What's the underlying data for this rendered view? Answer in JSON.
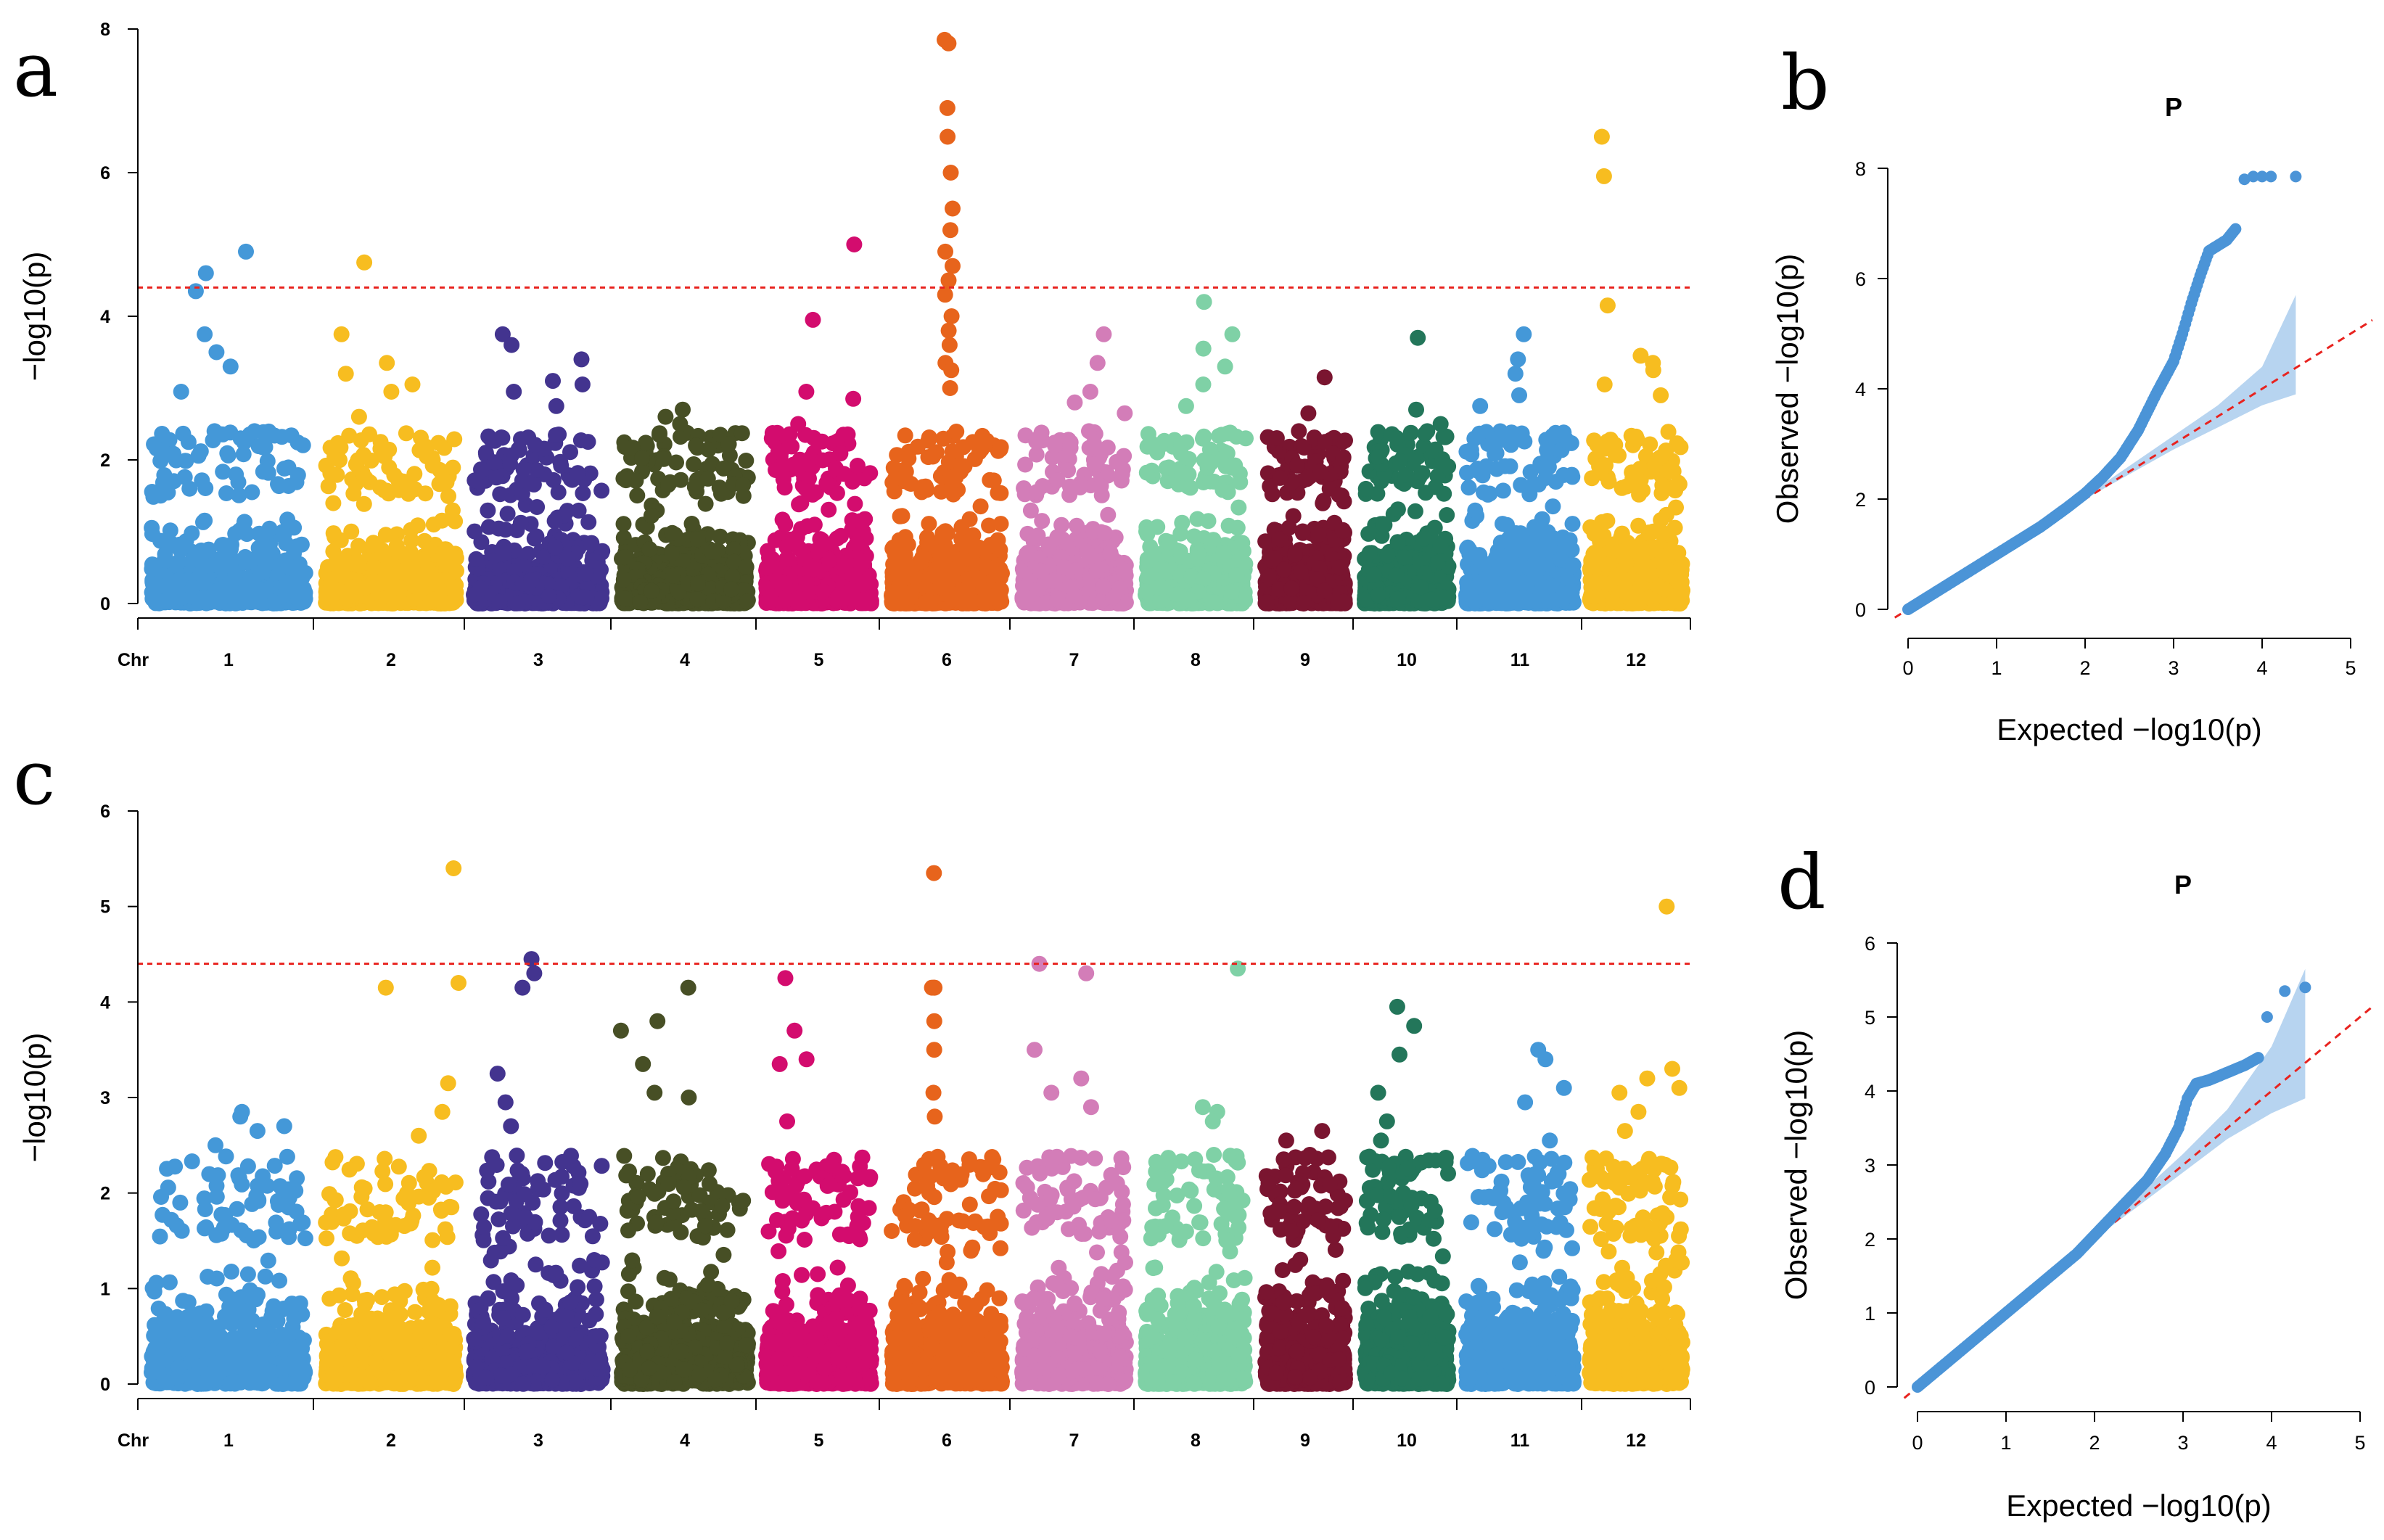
{
  "chart_data": [
    {
      "panel": "a",
      "type": "scatter",
      "xlabel": "Chr",
      "ylabel": "−log10(p)",
      "categories": [
        "1",
        "2",
        "3",
        "4",
        "5",
        "6",
        "7",
        "8",
        "9",
        "10",
        "11",
        "12"
      ],
      "yticks": [
        "0",
        "2",
        "4",
        "6",
        "8"
      ],
      "ylim": [
        0,
        8
      ],
      "threshold": 4.4,
      "colors": [
        "#4498d8",
        "#f7bd20",
        "#43348f",
        "#474f25",
        "#d30c6e",
        "#e7641c",
        "#d37db8",
        "#7fd1a6",
        "#7a1530",
        "#23765a",
        "#4498d8",
        "#f7bd20"
      ],
      "threshold_color": "#e8231f",
      "grid": false,
      "legend": "none",
      "peaks": [
        {
          "chr": 1,
          "values": [
            4.9,
            4.6,
            4.35,
            3.75,
            3.5,
            3.3,
            2.95,
            2.4,
            2.3,
            2.25
          ]
        },
        {
          "chr": 2,
          "values": [
            4.75,
            3.75,
            3.35,
            3.2,
            3.05,
            2.95,
            2.6
          ]
        },
        {
          "chr": 3,
          "values": [
            3.75,
            3.6,
            3.4,
            3.1,
            3.05,
            2.95,
            2.75
          ]
        },
        {
          "chr": 4,
          "values": [
            2.7,
            2.6,
            2.5,
            2.35,
            2.2
          ]
        },
        {
          "chr": 5,
          "values": [
            5.0,
            3.95,
            2.95,
            2.85,
            2.5
          ]
        },
        {
          "chr": 6,
          "values": [
            7.85,
            7.8,
            6.9,
            6.5,
            6.0,
            5.5,
            5.2,
            4.9,
            4.7,
            4.5,
            4.3,
            4.0,
            3.8,
            3.6,
            3.35,
            3.25,
            3.0
          ]
        },
        {
          "chr": 7,
          "values": [
            3.75,
            3.35,
            2.95,
            2.8,
            2.65
          ]
        },
        {
          "chr": 8,
          "values": [
            4.2,
            3.75,
            3.55,
            3.3,
            3.05,
            2.75
          ]
        },
        {
          "chr": 9,
          "values": [
            3.15,
            2.65,
            2.4,
            2.25
          ]
        },
        {
          "chr": 10,
          "values": [
            3.7,
            2.7,
            2.5,
            2.4
          ]
        },
        {
          "chr": 11,
          "values": [
            3.75,
            3.4,
            3.2,
            2.9,
            2.75
          ]
        },
        {
          "chr": 12,
          "values": [
            6.5,
            5.95,
            4.15,
            3.45,
            3.35,
            3.25,
            3.05,
            2.9
          ]
        }
      ]
    },
    {
      "panel": "b",
      "type": "scatter",
      "title": "P",
      "xlabel": "Expected  −log10(p)",
      "ylabel": "Observed  −log10(p)",
      "xticks": [
        "0",
        "1",
        "2",
        "3",
        "4",
        "5"
      ],
      "yticks": [
        "0",
        "2",
        "4",
        "6",
        "8"
      ],
      "xlim": [
        0,
        5
      ],
      "ylim": [
        0,
        8
      ],
      "point_color": "#4b94d7",
      "band_color": "#b7d4f0",
      "line_color": "#e8231f",
      "grid": false,
      "legend": "none",
      "curve": [
        [
          0,
          0
        ],
        [
          0.5,
          0.5
        ],
        [
          1,
          1
        ],
        [
          1.5,
          1.5
        ],
        [
          1.8,
          1.85
        ],
        [
          2,
          2.1
        ],
        [
          2.2,
          2.4
        ],
        [
          2.4,
          2.75
        ],
        [
          2.6,
          3.25
        ],
        [
          2.8,
          3.9
        ],
        [
          3.0,
          4.5
        ],
        [
          3.1,
          5.0
        ],
        [
          3.2,
          5.55
        ],
        [
          3.3,
          6.05
        ],
        [
          3.4,
          6.5
        ],
        [
          3.6,
          6.7
        ],
        [
          3.7,
          6.9
        ]
      ],
      "top_points": [
        [
          3.8,
          7.8
        ],
        [
          3.9,
          7.85
        ],
        [
          4.0,
          7.85
        ],
        [
          4.1,
          7.85
        ],
        [
          4.38,
          7.85
        ]
      ],
      "band": {
        "x": [
          1.5,
          2.0,
          2.5,
          3.0,
          3.5,
          4.0,
          4.38
        ],
        "lower": [
          1.5,
          2.0,
          2.45,
          2.9,
          3.3,
          3.7,
          3.9
        ],
        "upper": [
          1.5,
          2.05,
          2.6,
          3.15,
          3.7,
          4.4,
          5.7
        ]
      }
    },
    {
      "panel": "c",
      "type": "scatter",
      "xlabel": "Chr",
      "ylabel": "−log10(p)",
      "categories": [
        "1",
        "2",
        "3",
        "4",
        "5",
        "6",
        "7",
        "8",
        "9",
        "10",
        "11",
        "12"
      ],
      "yticks": [
        "0",
        "1",
        "2",
        "3",
        "4",
        "5",
        "6"
      ],
      "ylim": [
        0,
        6
      ],
      "threshold": 4.4,
      "colors": [
        "#4498d8",
        "#f7bd20",
        "#43348f",
        "#474f25",
        "#d30c6e",
        "#e7641c",
        "#d37db8",
        "#7fd1a6",
        "#7a1530",
        "#23765a",
        "#4498d8",
        "#f7bd20"
      ],
      "threshold_color": "#e8231f",
      "grid": false,
      "legend": "none",
      "peaks": [
        {
          "chr": 1,
          "values": [
            2.85,
            2.8,
            2.7,
            2.65,
            2.5
          ]
        },
        {
          "chr": 2,
          "values": [
            5.4,
            4.2,
            4.15,
            3.15,
            2.85,
            2.6
          ]
        },
        {
          "chr": 3,
          "values": [
            4.45,
            4.3,
            4.15,
            3.25,
            2.95,
            2.7
          ]
        },
        {
          "chr": 4,
          "values": [
            4.15,
            3.8,
            3.7,
            3.35,
            3.05,
            3.0
          ]
        },
        {
          "chr": 5,
          "values": [
            4.25,
            3.7,
            3.4,
            3.35,
            2.75
          ]
        },
        {
          "chr": 6,
          "values": [
            5.35,
            4.15,
            4.15,
            4.15,
            3.8,
            3.5,
            3.05,
            2.8
          ]
        },
        {
          "chr": 7,
          "values": [
            4.4,
            4.3,
            3.5,
            3.2,
            3.05,
            2.9
          ]
        },
        {
          "chr": 8,
          "values": [
            4.35,
            2.9,
            2.85,
            2.75
          ]
        },
        {
          "chr": 9,
          "values": [
            2.65,
            2.55,
            2.4
          ]
        },
        {
          "chr": 10,
          "values": [
            3.95,
            3.75,
            3.45,
            3.05,
            2.75,
            2.55
          ]
        },
        {
          "chr": 11,
          "values": [
            3.5,
            3.4,
            3.1,
            2.95,
            2.55
          ]
        },
        {
          "chr": 12,
          "values": [
            5.0,
            3.3,
            3.2,
            3.1,
            3.05,
            2.85,
            2.65
          ]
        }
      ]
    },
    {
      "panel": "d",
      "type": "scatter",
      "title": "P",
      "xlabel": "Expected  −log10(p)",
      "ylabel": "Observed  −log10(p)",
      "xticks": [
        "0",
        "1",
        "2",
        "3",
        "4",
        "5"
      ],
      "yticks": [
        "0",
        "1",
        "2",
        "3",
        "4",
        "5",
        "6"
      ],
      "xlim": [
        0,
        5
      ],
      "ylim": [
        0,
        6
      ],
      "point_color": "#4b94d7",
      "band_color": "#b7d4f0",
      "line_color": "#e8231f",
      "grid": false,
      "legend": "none",
      "curve": [
        [
          0,
          0
        ],
        [
          0.5,
          0.5
        ],
        [
          1,
          1
        ],
        [
          1.5,
          1.5
        ],
        [
          1.8,
          1.8
        ],
        [
          2,
          2.05
        ],
        [
          2.2,
          2.3
        ],
        [
          2.4,
          2.55
        ],
        [
          2.6,
          2.8
        ],
        [
          2.8,
          3.15
        ],
        [
          2.95,
          3.5
        ],
        [
          3.05,
          3.9
        ],
        [
          3.15,
          4.1
        ],
        [
          3.3,
          4.15
        ],
        [
          3.5,
          4.25
        ],
        [
          3.7,
          4.35
        ],
        [
          3.85,
          4.45
        ]
      ],
      "top_points": [
        [
          3.95,
          5.0
        ],
        [
          4.15,
          5.35
        ],
        [
          4.38,
          5.4
        ]
      ],
      "band": {
        "x": [
          1.5,
          2.0,
          2.5,
          3.0,
          3.5,
          4.0,
          4.38
        ],
        "lower": [
          1.5,
          2.0,
          2.45,
          2.9,
          3.35,
          3.7,
          3.9
        ],
        "upper": [
          1.5,
          2.05,
          2.6,
          3.15,
          3.75,
          4.6,
          5.65
        ]
      }
    }
  ],
  "panels": {
    "a": {
      "letter": "a"
    },
    "b": {
      "letter": "b"
    },
    "c": {
      "letter": "c"
    },
    "d": {
      "letter": "d"
    }
  }
}
